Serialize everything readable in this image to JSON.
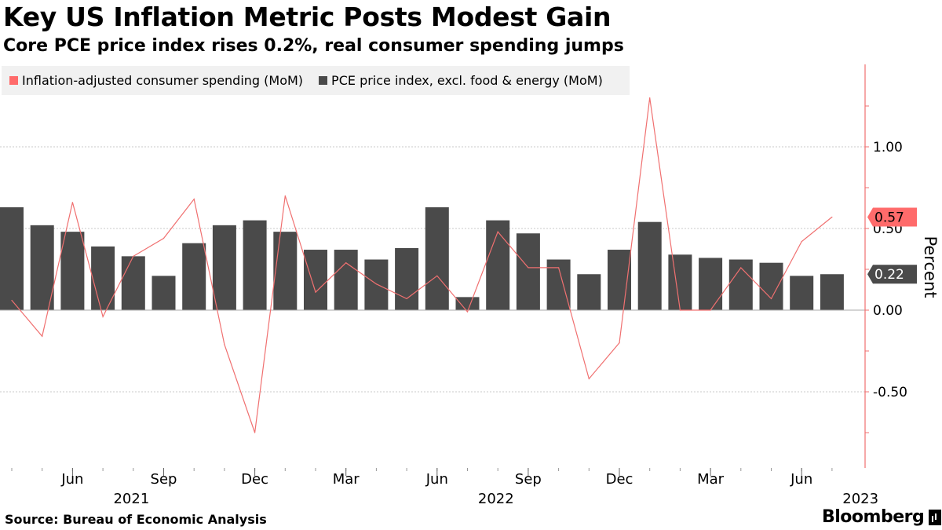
{
  "title": "Key US Inflation Metric Posts Modest Gain",
  "subtitle": "Core PCE price index rises 0.2%, real consumer spending jumps",
  "source": "Source: Bureau of Economic Analysis",
  "brand": "Bloomberg",
  "colors": {
    "bars": "#4a4a4a",
    "line": "#f07070",
    "axis": "#f07070",
    "label_line": "#ff6b6b",
    "label_bar": "#4a4a4a",
    "legend_bg": "#f1f1f1",
    "grid": "#c8c8c8"
  },
  "chart_data": {
    "type": "bar+line",
    "ylabel": "Percent",
    "ylim": [
      -0.95,
      1.49
    ],
    "yticks": [
      1.0,
      0.5,
      0.0,
      -0.5
    ],
    "ytick_labels": [
      "1.00",
      "0.50",
      "0.00",
      "-0.50"
    ],
    "gridlines": true,
    "legend_position": "top-left",
    "months": [
      "Apr 2021",
      "May 2021",
      "Jun 2021",
      "Jul 2021",
      "Aug 2021",
      "Sep 2021",
      "Oct 2021",
      "Nov 2021",
      "Dec 2021",
      "Jan 2022",
      "Feb 2022",
      "Mar 2022",
      "Apr 2022",
      "May 2022",
      "Jun 2022",
      "Jul 2022",
      "Aug 2022",
      "Sep 2022",
      "Oct 2022",
      "Nov 2022",
      "Dec 2022",
      "Jan 2023",
      "Feb 2023",
      "Mar 2023",
      "Apr 2023",
      "May 2023",
      "Jun 2023",
      "Jul 2023"
    ],
    "series": [
      {
        "name": "Inflation-adjusted consumer spending (MoM)",
        "kind": "line",
        "color": "#f07070",
        "values": [
          0.06,
          -0.16,
          0.66,
          -0.04,
          0.33,
          0.44,
          0.68,
          -0.21,
          -0.75,
          0.7,
          0.11,
          0.29,
          0.16,
          0.07,
          0.21,
          -0.01,
          0.48,
          0.26,
          0.26,
          -0.42,
          -0.2,
          1.3,
          0.0,
          0.0,
          0.26,
          0.07,
          0.42,
          0.57
        ]
      },
      {
        "name": "PCE price index, excl. food & energy (MoM)",
        "kind": "bar",
        "color": "#4a4a4a",
        "values": [
          0.63,
          0.52,
          0.48,
          0.39,
          0.33,
          0.21,
          0.41,
          0.52,
          0.55,
          0.48,
          0.37,
          0.37,
          0.31,
          0.38,
          0.63,
          0.08,
          0.55,
          0.47,
          0.31,
          0.22,
          0.37,
          0.54,
          0.34,
          0.32,
          0.31,
          0.29,
          0.21,
          0.22
        ]
      }
    ],
    "x_tick_labels": [
      {
        "month": "Jun 2021",
        "label": "Jun"
      },
      {
        "month": "Sep 2021",
        "label": "Sep"
      },
      {
        "month": "Dec 2021",
        "label": "Dec"
      },
      {
        "month": "Mar 2022",
        "label": "Mar"
      },
      {
        "month": "Jun 2022",
        "label": "Jun"
      },
      {
        "month": "Sep 2022",
        "label": "Sep"
      },
      {
        "month": "Dec 2022",
        "label": "Dec"
      },
      {
        "month": "Mar 2023",
        "label": "Mar"
      },
      {
        "month": "Jun 2023",
        "label": "Jun"
      }
    ],
    "year_labels": [
      {
        "month": "Jun 2021",
        "label": "2021"
      },
      {
        "month": "Jun 2022",
        "label": "2022"
      },
      {
        "month": "Jun 2023",
        "label": "2023"
      }
    ],
    "last_value_labels": [
      {
        "series": 0,
        "text": "0.57"
      },
      {
        "series": 1,
        "text": "0.22"
      }
    ]
  }
}
